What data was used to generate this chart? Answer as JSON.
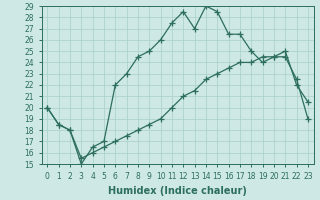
{
  "xlabel": "Humidex (Indice chaleur)",
  "x": [
    0,
    1,
    2,
    3,
    4,
    5,
    6,
    7,
    8,
    9,
    10,
    11,
    12,
    13,
    14,
    15,
    16,
    17,
    18,
    19,
    20,
    21,
    22,
    23
  ],
  "line1_y": [
    20,
    18.5,
    18,
    15,
    16.5,
    17,
    22,
    23,
    24.5,
    25,
    26,
    27.5,
    28.5,
    27,
    29,
    28.5,
    26.5,
    26.5,
    25,
    24,
    24.5,
    25,
    22,
    20.5
  ],
  "line2_y": [
    20,
    18.5,
    18,
    15.5,
    16,
    16.5,
    17,
    17.5,
    18,
    18.5,
    19,
    20,
    21,
    21.5,
    22.5,
    23,
    23.5,
    24,
    24,
    24.5,
    24.5,
    24.5,
    22.5,
    19
  ],
  "line_color": "#2d6e5e",
  "bg_color": "#cde8e5",
  "grid_color": "#aacfcc",
  "ylim": [
    15,
    29
  ],
  "xlim_min": -0.5,
  "xlim_max": 23.5,
  "yticks": [
    15,
    16,
    17,
    18,
    19,
    20,
    21,
    22,
    23,
    24,
    25,
    26,
    27,
    28,
    29
  ],
  "xticks": [
    0,
    1,
    2,
    3,
    4,
    5,
    6,
    7,
    8,
    9,
    10,
    11,
    12,
    13,
    14,
    15,
    16,
    17,
    18,
    19,
    20,
    21,
    22,
    23
  ],
  "xtick_labels": [
    "0",
    "1",
    "2",
    "3",
    "4",
    "5",
    "6",
    "7",
    "8",
    "9",
    "10",
    "11",
    "12",
    "13",
    "14",
    "15",
    "16",
    "17",
    "18",
    "19",
    "20",
    "21",
    "22",
    "23"
  ],
  "marker": "+",
  "markersize": 4,
  "linewidth": 0.9,
  "tick_fontsize": 5.5,
  "xlabel_fontsize": 7
}
